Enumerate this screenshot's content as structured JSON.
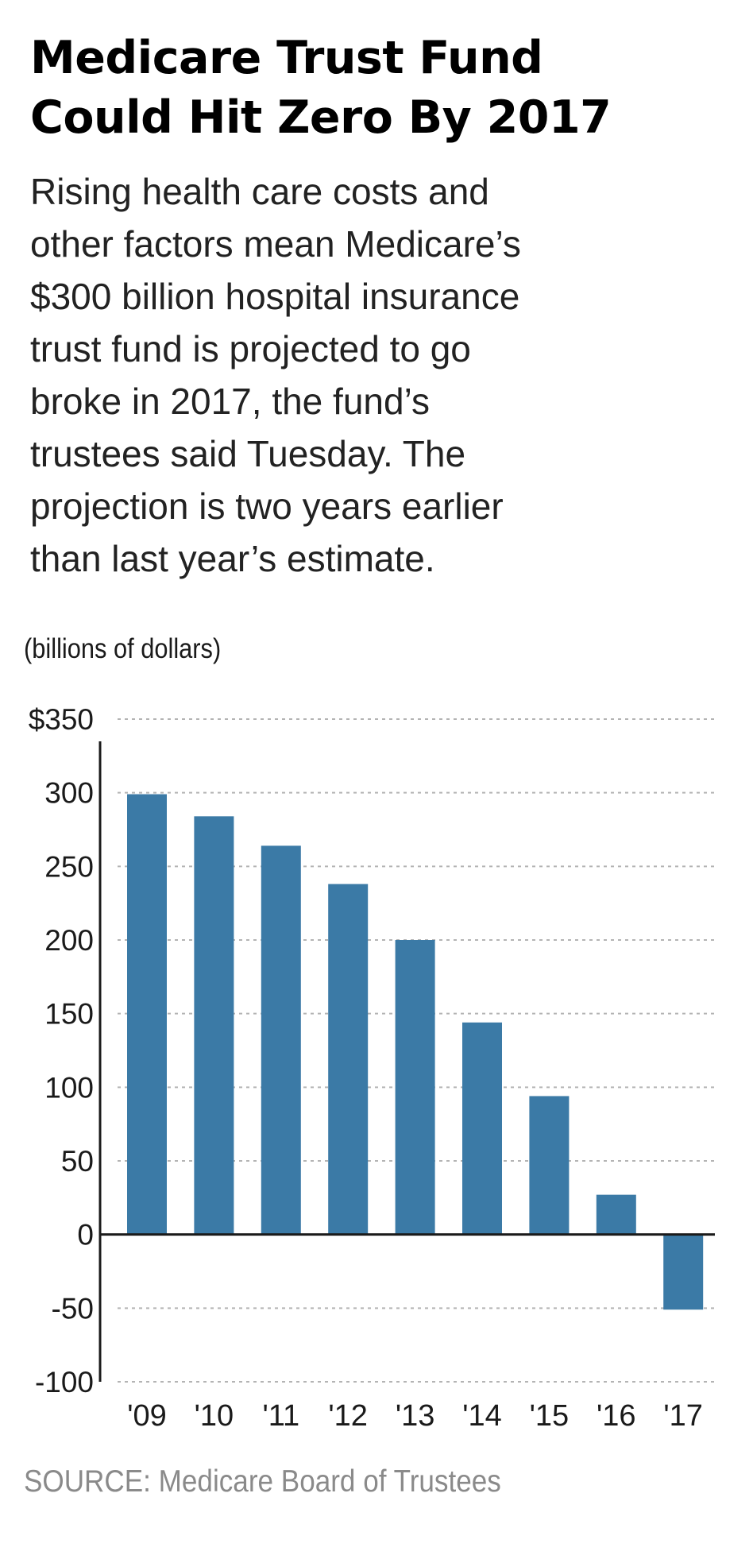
{
  "header": {
    "title_lines": [
      "Medicare Trust Fund",
      "Could Hit Zero By 2017"
    ],
    "subtitle_lines": [
      "Rising health care costs and",
      "other factors mean Medicare’s",
      "$300 billion hospital insurance",
      "trust fund is projected to go",
      "broke in 2017, the fund’s",
      "trustees said Tuesday. The",
      "projection is two years earlier",
      "than last year’s estimate."
    ]
  },
  "chart_data": {
    "type": "bar",
    "title": "",
    "xlabel": "",
    "ylabel": "(billions of dollars)",
    "categories": [
      "'09",
      "'10",
      "'11",
      "'12",
      "'13",
      "'14",
      "'15",
      "'16",
      "'17"
    ],
    "values": [
      299,
      284,
      264,
      238,
      200,
      144,
      94,
      27,
      -51
    ],
    "ylim": [
      -100,
      350
    ],
    "yticks": [
      350,
      300,
      250,
      200,
      150,
      100,
      50,
      0,
      -50,
      -100
    ],
    "ytick_labels": [
      "$350",
      "300",
      "250",
      "200",
      "150",
      "100",
      "50",
      "0",
      "-50",
      "-100"
    ],
    "grid": true,
    "bar_color": "#3b7aa6",
    "legend": "none"
  },
  "footer": {
    "source": "SOURCE:  Medicare Board of Trustees"
  }
}
